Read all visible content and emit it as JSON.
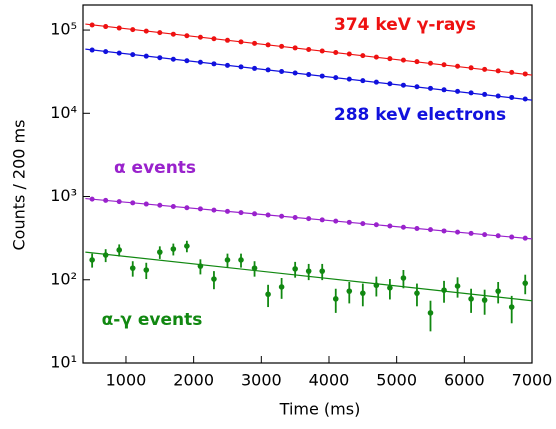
{
  "chart_data": {
    "type": "scatter",
    "x_label": "Time (ms)",
    "y_label": "Counts / 200 ms",
    "log_y": true,
    "xlim": [
      365,
      7000
    ],
    "xticks": [
      1000,
      2000,
      3000,
      4000,
      5000,
      6000,
      7000
    ],
    "ylim": [
      10,
      200000
    ],
    "yticks": [
      {
        "value": 10,
        "label": "10¹"
      },
      {
        "value": 100,
        "label": "10²"
      },
      {
        "value": 1000,
        "label": "10³"
      },
      {
        "value": 10000,
        "label": "10⁴"
      },
      {
        "value": 100000,
        "label": "10⁵"
      }
    ],
    "x": [
      500,
      700,
      900,
      1100,
      1300,
      1500,
      1700,
      1900,
      2100,
      2300,
      2500,
      2700,
      2900,
      3100,
      3300,
      3500,
      3700,
      3900,
      4100,
      4300,
      4500,
      4700,
      4900,
      5100,
      5300,
      5500,
      5700,
      5900,
      6100,
      6300,
      6500,
      6700,
      6900
    ],
    "fit_x": [
      400,
      7000
    ],
    "series": [
      {
        "name": "374 keV γ-rays",
        "color": "#ee1111",
        "values": [
          115000,
          110200,
          105700,
          101300,
          97100,
          93100,
          89200,
          85500,
          82000,
          78600,
          75300,
          72200,
          69200,
          66400,
          63600,
          61000,
          58400,
          56000,
          53700,
          51500,
          49300,
          47300,
          45300,
          43500,
          41700,
          39900,
          38300,
          36700,
          35200,
          33700,
          32300,
          31000,
          29700
        ],
        "fit_values": [
          118000,
          28800
        ]
      },
      {
        "name": "288 keV electrons",
        "color": "#1111dd",
        "values": [
          57500,
          55100,
          52850,
          50650,
          48550,
          46550,
          44600,
          42750,
          41000,
          39300,
          37650,
          36100,
          34600,
          33200,
          31800,
          30500,
          29200,
          28000,
          26850,
          25750,
          24650,
          23650,
          22650,
          21750,
          20850,
          19950,
          19150,
          18350,
          17600,
          16850,
          16150,
          15500,
          14850
        ],
        "fit_values": [
          59000,
          14400
        ]
      },
      {
        "name": "α events",
        "color": "#9922cc",
        "values": [
          930,
          899,
          869,
          840,
          812,
          785,
          759,
          734,
          710,
          686,
          663,
          641,
          620,
          600,
          580,
          560,
          542,
          524,
          506,
          490,
          473,
          458,
          442,
          428,
          413,
          400,
          386,
          374,
          361,
          349,
          338,
          326,
          316
        ],
        "fit_values": [
          945,
          310
        ]
      },
      {
        "name": "α-γ events",
        "color": "#118811",
        "values": [
          173,
          198,
          228,
          138,
          131,
          215,
          234,
          254,
          146,
          102,
          173,
          173,
          138,
          67,
          82,
          135,
          127,
          127,
          59,
          73,
          69,
          86,
          80,
          105,
          69,
          40,
          75,
          84,
          59,
          57,
          73,
          47,
          91
        ],
        "errors": [
          33,
          35,
          38,
          29,
          29,
          37,
          38,
          40,
          30,
          25,
          33,
          33,
          29,
          20,
          23,
          29,
          28,
          28,
          19,
          21,
          21,
          23,
          22,
          26,
          21,
          16,
          22,
          23,
          19,
          19,
          21,
          17,
          24
        ],
        "fit_values": [
          215,
          56
        ]
      }
    ]
  }
}
